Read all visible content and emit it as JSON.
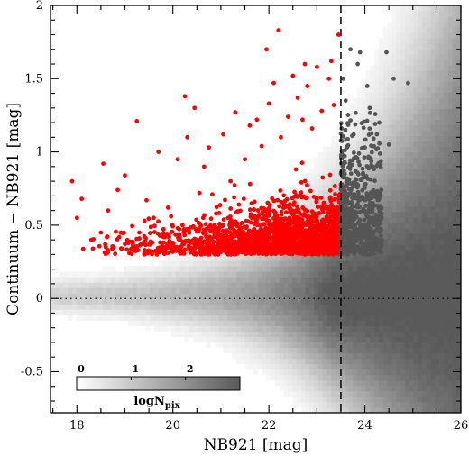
{
  "chart_data": {
    "type": "scatter",
    "xlabel": "NB921  [mag]",
    "ylabel": "Continuum − NB921  [mag]",
    "xlim": [
      17.45,
      26.0
    ],
    "ylim": [
      -0.78,
      2.0
    ],
    "xticks": [
      18,
      20,
      22,
      24,
      26
    ],
    "yticks": [
      -0.5,
      0,
      0.5,
      1,
      1.5,
      2
    ],
    "x_minor_step": 0.5,
    "y_minor_step": 0.1,
    "vertical_line": {
      "x": 23.5,
      "style": "dashed"
    },
    "horizontal_line": {
      "y": 0,
      "style": "dotted"
    },
    "background_density": {
      "description_label": "logN",
      "label_subscript": "pix",
      "colorbar_ticks": [
        "0",
        "1",
        "2"
      ],
      "colorbar_range": [
        0,
        3
      ],
      "color_low": "#ffffff",
      "color_high": "#5a5a5a"
    },
    "selection_threshold_color": 0.3,
    "series": [
      {
        "color": "#ff0000",
        "x_range": [
          17.9,
          23.5
        ],
        "points": [
          [
            17.9,
            0.8
          ],
          [
            18.0,
            0.55
          ],
          [
            18.1,
            0.68
          ],
          [
            18.3,
            0.4
          ],
          [
            18.5,
            0.45
          ],
          [
            18.55,
            0.92
          ],
          [
            18.6,
            0.35
          ],
          [
            18.65,
            0.6
          ],
          [
            18.85,
            0.74
          ],
          [
            19.0,
            0.84
          ],
          [
            19.25,
            1.21
          ],
          [
            19.3,
            0.45
          ],
          [
            19.45,
            0.67
          ],
          [
            19.6,
            0.55
          ],
          [
            19.7,
            1.0
          ],
          [
            19.8,
            0.42
          ],
          [
            19.9,
            0.62
          ],
          [
            20.1,
            0.95
          ],
          [
            20.2,
            0.5
          ],
          [
            20.25,
            1.38
          ],
          [
            20.3,
            1.1
          ],
          [
            20.45,
            1.3
          ],
          [
            20.55,
            0.72
          ],
          [
            20.65,
            0.9
          ],
          [
            20.75,
            1.03
          ],
          [
            20.9,
            0.58
          ],
          [
            21.05,
            1.12
          ],
          [
            21.2,
            0.8
          ],
          [
            21.3,
            1.27
          ],
          [
            21.5,
            0.95
          ],
          [
            21.6,
            1.18
          ],
          [
            21.7,
            0.66
          ],
          [
            21.75,
            1.22
          ],
          [
            21.85,
            1.04
          ],
          [
            22.0,
            1.33
          ],
          [
            22.1,
            1.47
          ],
          [
            22.2,
            1.83
          ],
          [
            22.25,
            1.1
          ],
          [
            22.4,
            1.24
          ],
          [
            22.5,
            1.52
          ],
          [
            22.6,
            1.37
          ],
          [
            22.7,
            1.22
          ],
          [
            22.8,
            1.45
          ],
          [
            22.9,
            1.16
          ],
          [
            23.0,
            1.58
          ],
          [
            23.1,
            1.28
          ],
          [
            23.25,
            1.5
          ],
          [
            23.3,
            1.62
          ],
          [
            23.35,
            1.32
          ],
          [
            23.45,
            1.8
          ],
          [
            21.95,
            1.7
          ],
          [
            22.75,
            1.6
          ]
        ]
      },
      {
        "color": "#555555",
        "x_range": [
          23.5,
          25.0
        ],
        "points": [
          [
            23.55,
            1.5
          ],
          [
            23.6,
            1.35
          ],
          [
            23.7,
            1.7
          ],
          [
            23.85,
            1.6
          ],
          [
            23.9,
            1.68
          ],
          [
            24.05,
            1.45
          ],
          [
            24.1,
            1.3
          ],
          [
            24.3,
            1.2
          ],
          [
            24.45,
            1.68
          ],
          [
            24.6,
            1.5
          ],
          [
            24.9,
            1.47
          ],
          [
            24.5,
            1.05
          ],
          [
            24.25,
            1.12
          ],
          [
            24.0,
            1.03
          ]
        ]
      }
    ]
  }
}
